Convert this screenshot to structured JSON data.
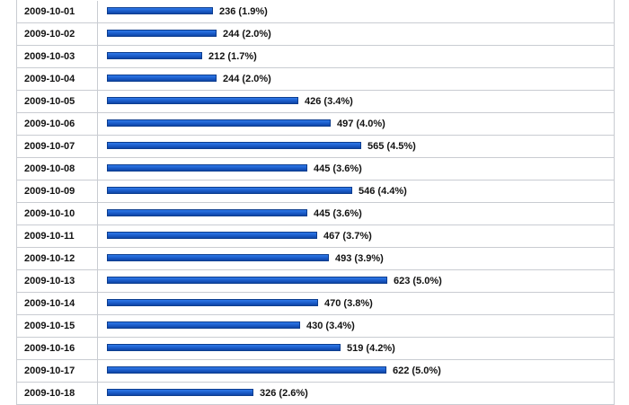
{
  "chart_data": {
    "type": "bar",
    "orientation": "horizontal",
    "categories": [
      "2009-10-01",
      "2009-10-02",
      "2009-10-03",
      "2009-10-04",
      "2009-10-05",
      "2009-10-06",
      "2009-10-07",
      "2009-10-08",
      "2009-10-09",
      "2009-10-10",
      "2009-10-11",
      "2009-10-12",
      "2009-10-13",
      "2009-10-14",
      "2009-10-15",
      "2009-10-16",
      "2009-10-17",
      "2009-10-18"
    ],
    "values": [
      236,
      244,
      212,
      244,
      426,
      497,
      565,
      445,
      546,
      445,
      467,
      493,
      623,
      470,
      430,
      519,
      622,
      326
    ],
    "labels": [
      "236 (1.9%)",
      "244 (2.0%)",
      "212 (1.7%)",
      "244 (2.0%)",
      "426 (3.4%)",
      "497 (4.0%)",
      "565 (4.5%)",
      "445 (3.6%)",
      "546 (4.4%)",
      "445 (3.6%)",
      "467 (3.7%)",
      "493 (3.9%)",
      "623 (5.0%)",
      "470 (3.8%)",
      "430 (3.4%)",
      "519 (4.2%)",
      "622 (5.0%)",
      "326 (2.6%)"
    ],
    "xlim": [
      0,
      623
    ],
    "bar_color": "#1b5cc9",
    "grid": false
  }
}
